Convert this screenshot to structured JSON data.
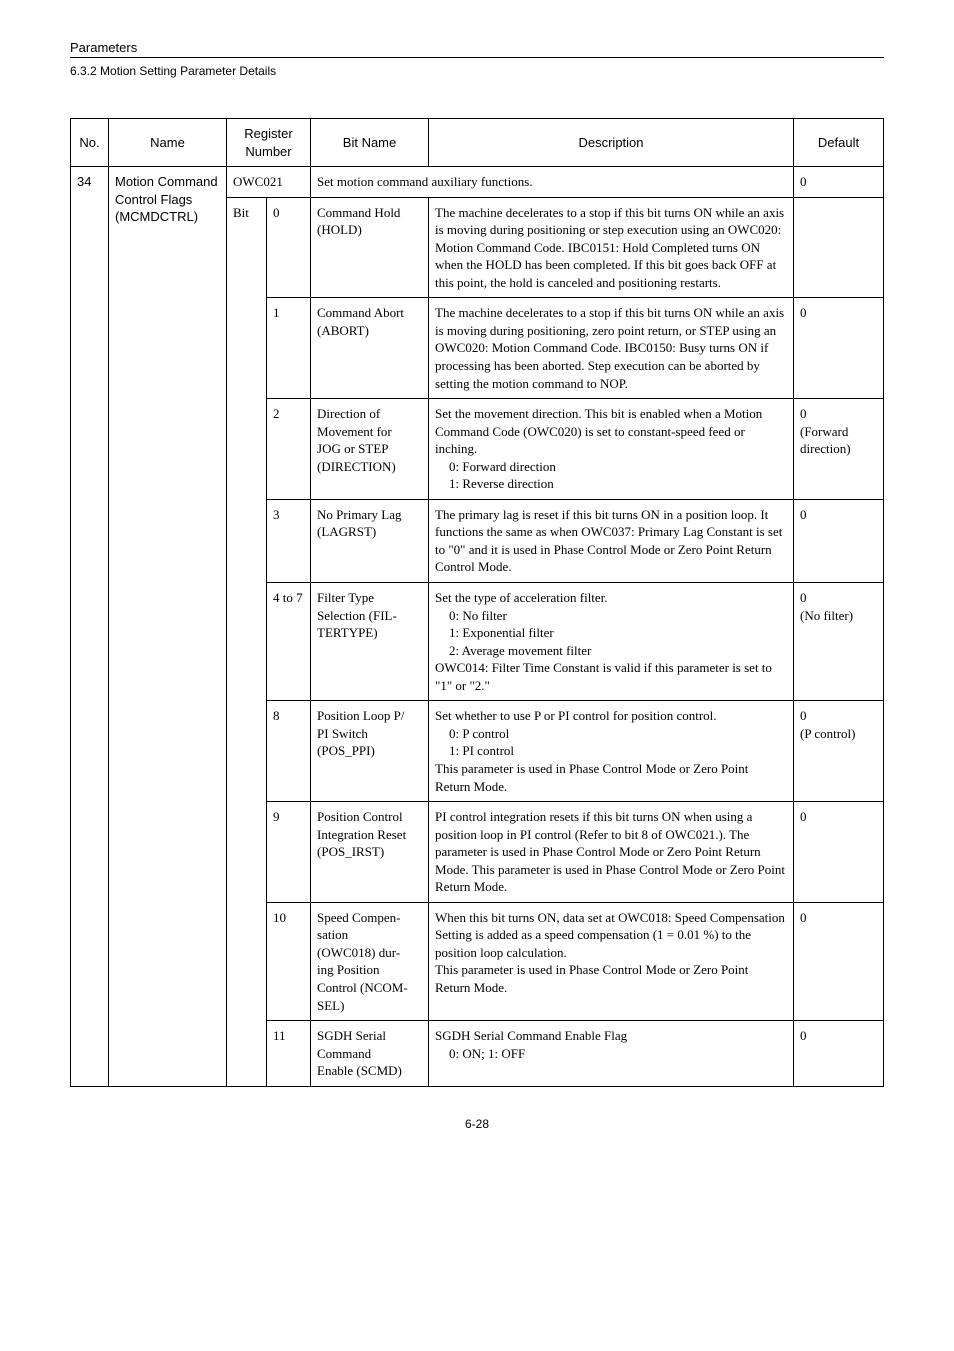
{
  "header": {
    "label": "Parameters",
    "subtitle": "6.3.2  Motion Setting Parameter Details"
  },
  "columns": {
    "no": "No.",
    "name": "Name",
    "register": "Register Number",
    "bitname": "Bit Name",
    "description": "Description",
    "default": "Default"
  },
  "row": {
    "no": "34",
    "name_l1": "Motion Command",
    "name_l2": "Control Flags",
    "name_l3": "(MCMDCTRL)",
    "reg": "OWC021",
    "bit_label": "Bit",
    "set_desc": "Set motion command auxiliary functions.",
    "set_def": "0"
  },
  "bits": [
    {
      "bit": "0",
      "name_l1": "Command Hold",
      "name_l2": "(HOLD)",
      "desc": "The machine decelerates to a stop if this bit turns ON while an axis is moving during positioning or step execution using an OWC020: Motion Command Code. IBC0151: Hold Completed turns ON when the HOLD has been completed. If this bit goes back OFF at this point, the hold is canceled and positioning restarts.",
      "def": ""
    },
    {
      "bit": "1",
      "name_l1": "Command Abort",
      "name_l2": "(ABORT)",
      "desc": "The machine decelerates to a stop if this bit turns ON while an axis is moving during positioning, zero point return, or STEP using an OWC020: Motion Command Code. IBC0150: Busy turns ON if processing has been aborted. Step execution can be aborted by setting the motion command to NOP.",
      "def": "0"
    },
    {
      "bit": "2",
      "name_l1": "Direction of",
      "name_l2": "Movement for",
      "name_l3": "JOG or STEP",
      "name_l4": "(DIRECTION)",
      "desc_main": "Set the movement direction. This bit is enabled when a Motion Command Code (OWC020) is set to constant-speed feed or inching.",
      "desc_i1": "0: Forward direction",
      "desc_i2": "1: Reverse direction",
      "def_l1": "0",
      "def_l2": "(Forward",
      "def_l3": "direction)"
    },
    {
      "bit": "3",
      "name_l1": "No Primary Lag",
      "name_l2": "(LAGRST)",
      "desc": "The primary lag is reset if this bit turns ON in a position loop. It functions the same as when OWC037: Primary Lag Constant is set to \"0\" and it is used in Phase Control Mode or Zero Point Return Control Mode.",
      "def": "0"
    },
    {
      "bit": "4 to 7",
      "name_l1": "Filter Type",
      "name_l2": "Selection (FIL-",
      "name_l3": "TERTYPE)",
      "desc_main": "Set the type of acceleration filter.",
      "desc_i1": "0: No filter",
      "desc_i2": "1: Exponential filter",
      "desc_i3": "2: Average movement filter",
      "desc_tail": "OWC014: Filter Time Constant is valid if this parameter is set to \"1\" or \"2.\"",
      "def_l1": "0",
      "def_l2": "(No filter)"
    },
    {
      "bit": "8",
      "name_l1": "Position Loop P/",
      "name_l2": "PI Switch",
      "name_l3": "(POS_PPI)",
      "desc_main": "Set whether to use P or PI control for position control.",
      "desc_i1": "0: P control",
      "desc_i2": "1: PI control",
      "desc_tail": "This parameter is used in Phase Control Mode or Zero Point Return Mode.",
      "def_l1": "0",
      "def_l2": "(P control)"
    },
    {
      "bit": "9",
      "name_l1": "Position Control",
      "name_l2": "Integration Reset",
      "name_l3": "(POS_IRST)",
      "desc": "PI control integration resets if this bit turns ON when using a position loop in PI control (Refer to bit 8 of OWC021.). The parameter is used in Phase Control Mode or Zero Point Return Mode. This parameter is used in Phase Control Mode or Zero Point Return Mode.",
      "def": "0"
    },
    {
      "bit": "10",
      "name_l1": "Speed Compen-",
      "name_l2": "sation",
      "name_l3": "(OWC018) dur-",
      "name_l4": "ing Position",
      "name_l5": "Control (NCOM-",
      "name_l6": "SEL)",
      "desc": "When this bit turns ON, data set at OWC018: Speed Compensation Setting is added as a speed compensation (1 = 0.01 %) to the position loop calculation.\nThis parameter is used in Phase Control Mode or Zero Point Return Mode.",
      "def": "0"
    },
    {
      "bit": "11",
      "name_l1": "SGDH Serial",
      "name_l2": "Command",
      "name_l3": "Enable (SCMD)",
      "desc_main": "SGDH Serial Command Enable Flag",
      "desc_i1": "0: ON; 1: OFF",
      "def": "0"
    }
  ],
  "pagenum": "6-28"
}
